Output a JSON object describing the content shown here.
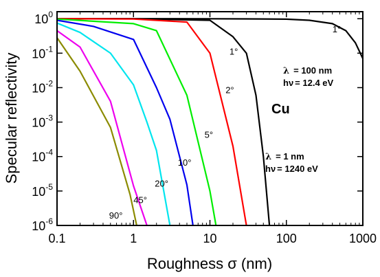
{
  "chart_data": {
    "type": "line",
    "xlabel": "Roughness σ (nm)",
    "ylabel": "Specular reflectivity",
    "x_scale": "log",
    "y_scale": "log",
    "xlim": [
      0.1,
      1000
    ],
    "ylim": [
      1e-06,
      1.6
    ],
    "x_ticks": [
      "0.1",
      "1",
      "10",
      "100",
      "1000"
    ],
    "y_ticks": [
      {
        "base": "10",
        "exp": "0",
        "value": 1
      },
      {
        "base": "10",
        "exp": "-1",
        "value": 0.1
      },
      {
        "base": "10",
        "exp": "-2",
        "value": 0.01
      },
      {
        "base": "10",
        "exp": "-3",
        "value": 0.001
      },
      {
        "base": "10",
        "exp": "-4",
        "value": 0.0001
      },
      {
        "base": "10",
        "exp": "-5",
        "value": 1e-05
      },
      {
        "base": "10",
        "exp": "-6",
        "value": 1e-06
      }
    ],
    "grid": false,
    "series": [
      {
        "label": "1°",
        "color": "#000000",
        "regime": "λ = 100 nm",
        "x": [
          0.1,
          1,
          10,
          30,
          100,
          200,
          400,
          600,
          800,
          1000
        ],
        "y": [
          1.0,
          1.0,
          0.999,
          0.99,
          0.97,
          0.9,
          0.72,
          0.45,
          0.2,
          0.07
        ]
      },
      {
        "label": "1°",
        "color": "#000000",
        "regime": "λ = 1 nm",
        "x": [
          0.1,
          1,
          10,
          20,
          30,
          40,
          50,
          60
        ],
        "y": [
          1.0,
          0.999,
          0.9,
          0.3,
          0.1,
          0.006,
          0.0001,
          1e-06
        ]
      },
      {
        "label": "2°",
        "color": "#ff0000",
        "x": [
          0.1,
          1,
          5,
          10,
          20,
          30
        ],
        "y": [
          1.0,
          0.98,
          0.8,
          0.1,
          0.0002,
          1e-06
        ]
      },
      {
        "label": "5°",
        "color": "#00ee00",
        "x": [
          0.1,
          1,
          2,
          5,
          10,
          12
        ],
        "y": [
          0.98,
          0.72,
          0.45,
          0.006,
          1e-05,
          1e-06
        ]
      },
      {
        "label": "10°",
        "color": "#0000ee",
        "x": [
          0.1,
          0.3,
          1,
          2,
          3,
          5,
          6
        ],
        "y": [
          0.9,
          0.6,
          0.25,
          0.01,
          0.0012,
          1.5e-05,
          1e-06
        ]
      },
      {
        "label": "20°",
        "color": "#00e5ee",
        "x": [
          0.1,
          0.2,
          0.5,
          1,
          1.5,
          2,
          3
        ],
        "y": [
          0.75,
          0.4,
          0.1,
          0.012,
          0.001,
          0.00015,
          1e-06
        ]
      },
      {
        "label": "45°",
        "color": "#ee00ee",
        "x": [
          0.1,
          0.2,
          0.5,
          1,
          1.5
        ],
        "y": [
          0.45,
          0.15,
          0.004,
          1.4e-05,
          1e-06
        ]
      },
      {
        "label": "90°",
        "color": "#8b8b00",
        "x": [
          0.1,
          0.2,
          0.5,
          0.9,
          1.1
        ],
        "y": [
          0.28,
          0.03,
          0.0007,
          8e-06,
          1e-06
        ]
      }
    ],
    "annotations": [
      {
        "text": "1°",
        "kind": "curve-label",
        "x": 400,
        "y": 0.4
      },
      {
        "text": "1°",
        "kind": "curve-label",
        "x": 18,
        "y": 0.09
      },
      {
        "text": "2°",
        "kind": "curve-label",
        "x": 16,
        "y": 0.007
      },
      {
        "text": "5°",
        "kind": "curve-label",
        "x": 8.5,
        "y": 0.00035
      },
      {
        "text": "10°",
        "kind": "curve-label",
        "x": 3.8,
        "y": 5.5e-05
      },
      {
        "text": "20°",
        "kind": "curve-label",
        "x": 1.9,
        "y": 1.35e-05
      },
      {
        "text": "45°",
        "kind": "curve-label",
        "x": 1.0,
        "y": 4.5e-06
      },
      {
        "text": "90°",
        "kind": "curve-label",
        "x": 0.48,
        "y": 1.6e-06
      }
    ],
    "labels": {
      "element": "Cu",
      "high_lambda": "= 100 nm",
      "high_energy": "= 12.4 eV",
      "low_lambda": "= 1 nm",
      "low_energy": "= 1240 eV",
      "lambda_symbol": "λ",
      "h_nu": "hν"
    }
  }
}
